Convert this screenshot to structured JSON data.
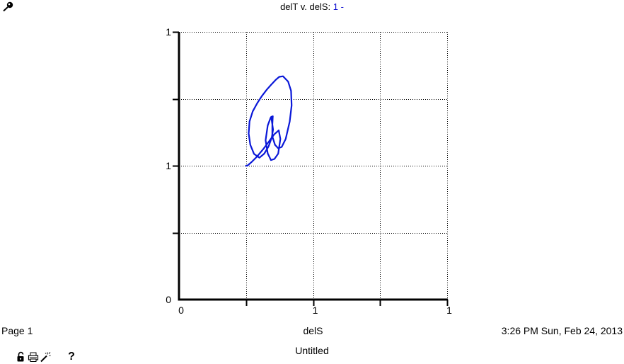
{
  "header": {
    "title_prefix": "delT v. delS:",
    "run_label": "1 -"
  },
  "chart_data": {
    "type": "line",
    "title": "delT v. delS: 1 -",
    "xlabel": "delS",
    "ylabel": "",
    "xlim": [
      0,
      1
    ],
    "ylim": [
      0,
      1
    ],
    "x_ticks": [
      {
        "value": 0,
        "label": "0"
      },
      {
        "value": 0.25,
        "label": ""
      },
      {
        "value": 0.5,
        "label": "1"
      },
      {
        "value": 0.75,
        "label": ""
      },
      {
        "value": 1,
        "label": "1"
      }
    ],
    "y_ticks": [
      {
        "value": 0,
        "label": "0"
      },
      {
        "value": 0.25,
        "label": ""
      },
      {
        "value": 0.5,
        "label": "1"
      },
      {
        "value": 0.75,
        "label": ""
      },
      {
        "value": 1,
        "label": "1"
      }
    ],
    "grid": true,
    "series": [
      {
        "name": "1",
        "color": "#0a18d8",
        "x": [
          0.25,
          0.255,
          0.27,
          0.29,
          0.315,
          0.335,
          0.355,
          0.372,
          0.378,
          0.37,
          0.356,
          0.343,
          0.331,
          0.323,
          0.331,
          0.342,
          0.35,
          0.348,
          0.348,
          0.358,
          0.37,
          0.383,
          0.398,
          0.413,
          0.42,
          0.418,
          0.407,
          0.388,
          0.374,
          0.362,
          0.346,
          0.328,
          0.309,
          0.292,
          0.275,
          0.263,
          0.26,
          0.266,
          0.28,
          0.3,
          0.318,
          0.334,
          0.346,
          0.351,
          0.347,
          0.344
        ],
        "y": [
          0.5,
          0.5,
          0.513,
          0.533,
          0.563,
          0.59,
          0.617,
          0.632,
          0.6,
          0.545,
          0.525,
          0.521,
          0.546,
          0.595,
          0.65,
          0.68,
          0.685,
          0.65,
          0.61,
          0.578,
          0.565,
          0.57,
          0.6,
          0.665,
          0.725,
          0.78,
          0.814,
          0.834,
          0.832,
          0.822,
          0.805,
          0.785,
          0.76,
          0.734,
          0.703,
          0.665,
          0.62,
          0.578,
          0.544,
          0.53,
          0.545,
          0.572,
          0.605,
          0.635,
          0.662,
          0.683
        ]
      }
    ]
  },
  "footer": {
    "page_label": "Page 1",
    "x_axis_name": "delS",
    "timestamp": "3:26 PM   Sun, Feb 24, 2013",
    "doc_name": "Untitled",
    "help_glyph": "?"
  },
  "icons": {
    "pin": "pin-icon",
    "lock": "lock-icon",
    "print": "print-icon",
    "magic": "magic-wand-icon",
    "help": "help-icon"
  }
}
